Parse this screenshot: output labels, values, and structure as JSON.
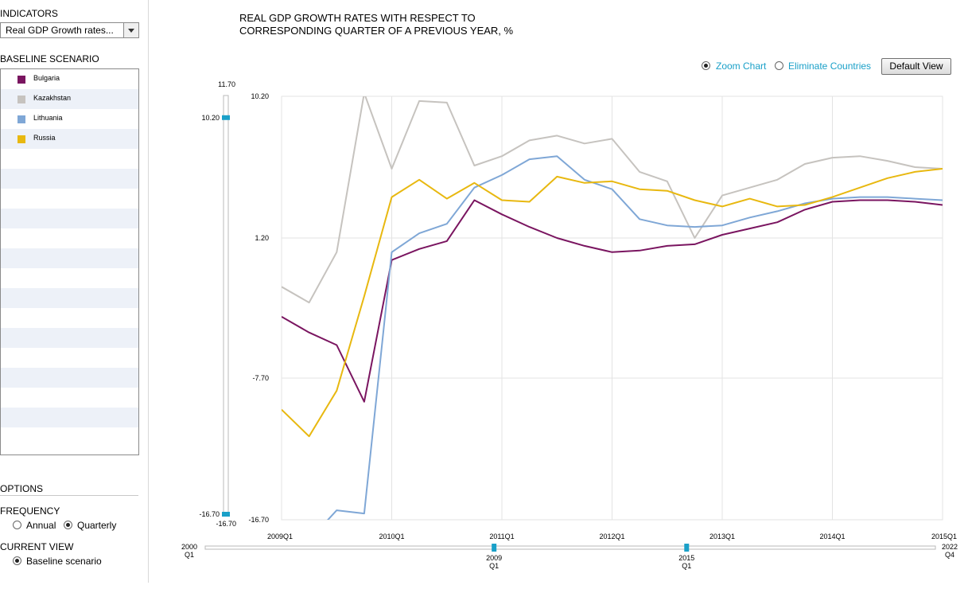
{
  "sidebar": {
    "indicators_label": "INDICATORS",
    "indicator_selected": "Real GDP Growth rates...",
    "baseline_label": "BASELINE SCENARIO",
    "options_label": "OPTIONS",
    "frequency_label": "FREQUENCY",
    "frequency_options": [
      "Annual",
      "Quarterly"
    ],
    "frequency_selected": "Quarterly",
    "current_view_label": "CURRENT VIEW",
    "current_view_value": "Baseline scenario"
  },
  "controls": {
    "zoom_label": "Zoom Chart",
    "eliminate_label": "Eliminate Countries",
    "zoom_selected": true,
    "default_view_label": "Default View"
  },
  "vslider": {
    "top_label": "11.70",
    "bottom_label": "-16.70",
    "handle_high_label": "10.20",
    "handle_low_label": "-16.70",
    "min": -16.7,
    "max": 11.7,
    "handle_high": 10.2,
    "handle_low": -16.7
  },
  "hslider": {
    "start_year": "2000",
    "start_q": "Q1",
    "end_year": "2022",
    "end_q": "Q4",
    "handle_left_year": "2009",
    "handle_left_q": "Q1",
    "handle_right_year": "2015",
    "handle_right_q": "Q1",
    "min": 2000.0,
    "max": 2022.75,
    "handle_left": 2009.0,
    "handle_right": 2015.0
  },
  "colors": {
    "Bulgaria": "#7a1560",
    "Kazakhstan": "#c6c3bf",
    "Lithuania": "#7fa7d6",
    "Russia": "#e8b810",
    "accent": "#1aa0c8",
    "grid": "#e3e3e3"
  },
  "chart_data": {
    "type": "line",
    "title": "REAL GDP GROWTH RATES WITH RESPECT TO CORRESPONDING QUARTER OF A PREVIOUS YEAR, %",
    "title_lines": [
      "REAL GDP GROWTH RATES WITH RESPECT TO",
      "CORRESPONDING QUARTER OF A PREVIOUS YEAR, %"
    ],
    "xlabel": "",
    "ylabel": "",
    "ylim": [
      -16.7,
      10.2
    ],
    "y_ticks": [
      10.2,
      1.2,
      -7.7,
      -16.7
    ],
    "y_tick_labels": [
      "10.20",
      "1.20",
      "-7.70",
      "-16.70"
    ],
    "x_tick_labels": [
      "2009Q1",
      "2010Q1",
      "2011Q1",
      "2012Q1",
      "2013Q1",
      "2014Q1",
      "2015Q1"
    ],
    "x": [
      "2009Q1",
      "2009Q2",
      "2009Q3",
      "2009Q4",
      "2010Q1",
      "2010Q2",
      "2010Q3",
      "2010Q4",
      "2011Q1",
      "2011Q2",
      "2011Q3",
      "2011Q4",
      "2012Q1",
      "2012Q2",
      "2012Q3",
      "2012Q4",
      "2013Q1",
      "2013Q2",
      "2013Q3",
      "2013Q4",
      "2014Q1",
      "2014Q2",
      "2014Q3",
      "2014Q4",
      "2015Q1"
    ],
    "grid": true,
    "legend": "sidebar",
    "series": [
      {
        "name": "Bulgaria",
        "values": [
          -3.8,
          -4.8,
          -5.6,
          -9.2,
          -0.2,
          0.5,
          1.0,
          3.6,
          2.7,
          1.9,
          1.2,
          0.7,
          0.3,
          0.4,
          0.7,
          0.8,
          1.4,
          1.8,
          2.2,
          3.0,
          3.5,
          3.6,
          3.6,
          3.5,
          3.3
        ]
      },
      {
        "name": "Kazakhstan",
        "values": [
          -1.9,
          -2.9,
          0.3,
          10.4,
          5.6,
          9.9,
          9.8,
          5.8,
          6.4,
          7.4,
          7.7,
          7.2,
          7.5,
          5.4,
          4.8,
          1.2,
          3.9,
          4.4,
          4.9,
          5.9,
          6.3,
          6.4,
          6.1,
          5.7,
          5.6
        ]
      },
      {
        "name": "Lithuania",
        "values": [
          -17.2,
          -18.0,
          -16.1,
          -16.3,
          0.3,
          1.5,
          2.1,
          4.4,
          5.2,
          6.2,
          6.4,
          4.9,
          4.3,
          2.4,
          2.0,
          1.9,
          2.0,
          2.5,
          2.9,
          3.4,
          3.7,
          3.8,
          3.8,
          3.7,
          3.6
        ]
      },
      {
        "name": "Russia",
        "values": [
          -9.7,
          -11.4,
          -8.5,
          -2.5,
          3.8,
          4.9,
          3.7,
          4.7,
          3.6,
          3.5,
          5.1,
          4.7,
          4.8,
          4.3,
          4.2,
          3.6,
          3.2,
          3.7,
          3.2,
          3.3,
          3.8,
          4.4,
          5.0,
          5.4,
          5.6
        ]
      }
    ]
  }
}
